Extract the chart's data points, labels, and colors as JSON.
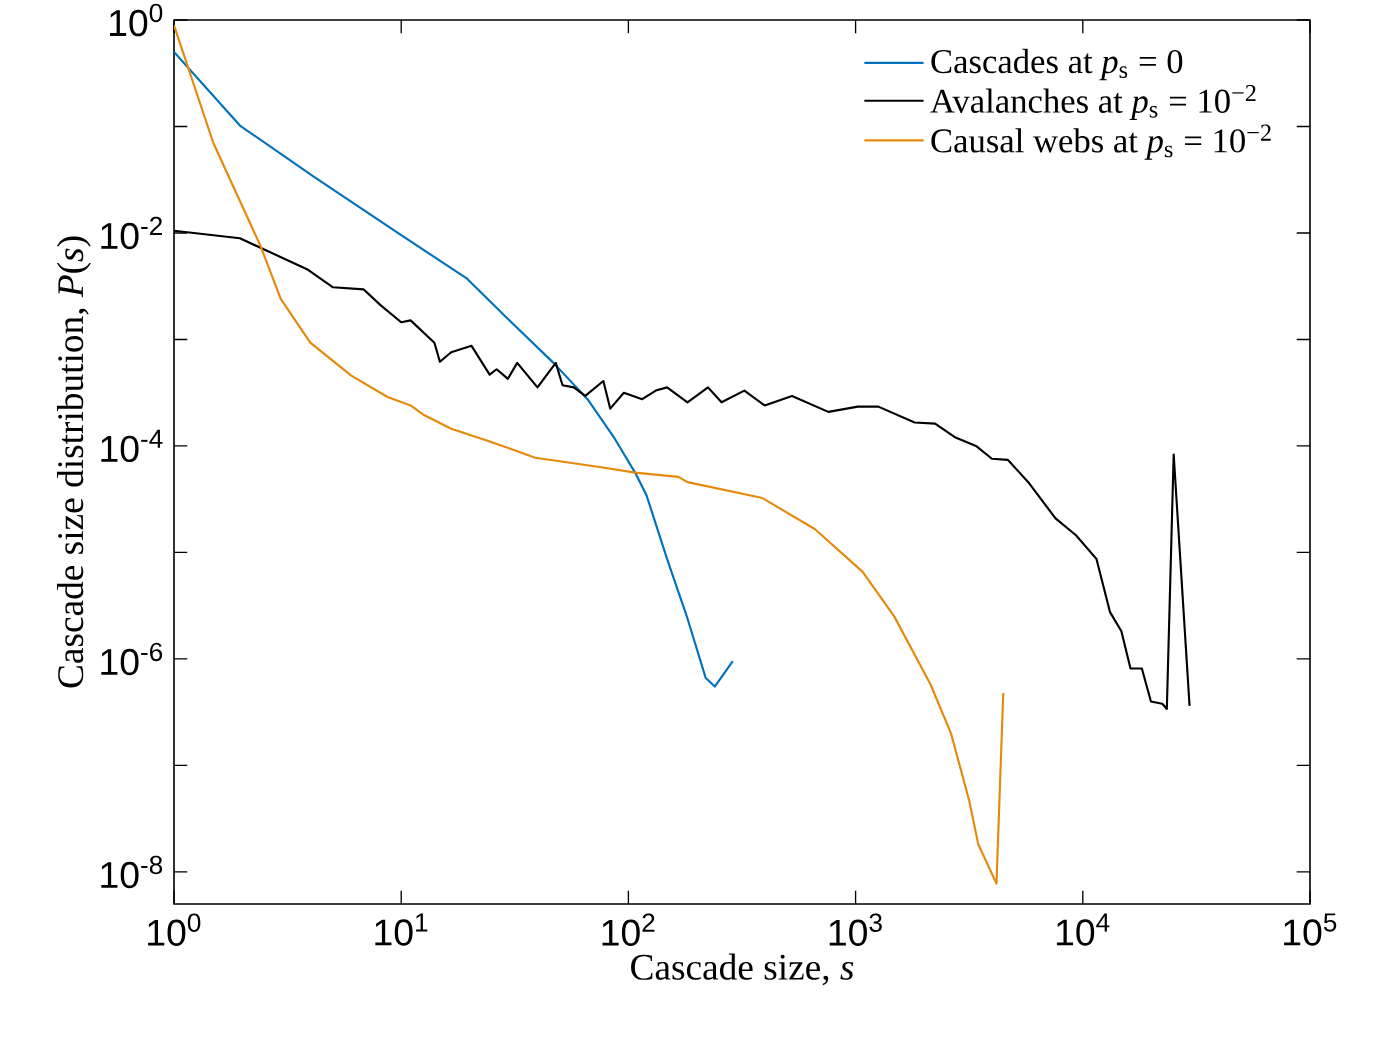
{
  "chart_data": {
    "type": "line",
    "xlabel": "Cascade size, *s*",
    "ylabel": "Cascade size distribution, *P*(*s*)",
    "log": "xy",
    "legend": "top right",
    "grid": false,
    "xlim": [
      1,
      100000
    ],
    "ylim": [
      5e-09,
      1
    ],
    "xticks": [
      {
        "value": 1,
        "label": "10$^{0}$"
      },
      {
        "value": 10,
        "label": "10$^{1}$"
      },
      {
        "value": 100,
        "label": "10$^{2}$"
      },
      {
        "value": 1000,
        "label": "10$^{3}$"
      },
      {
        "value": 10000,
        "label": "10$^{4}$"
      },
      {
        "value": 100000,
        "label": "10$^{5}$"
      }
    ],
    "yticks": [
      {
        "value": 1e-08,
        "label": "10$^{-8}$"
      },
      {
        "value": 1e-07,
        "label": null
      },
      {
        "value": 1e-06,
        "label": "10$^{-6}$"
      },
      {
        "value": 1e-05,
        "label": null
      },
      {
        "value": 0.0001,
        "label": "10$^{-4}$"
      },
      {
        "value": 0.001,
        "label": null
      },
      {
        "value": 0.01,
        "label": "10$^{-2}$"
      },
      {
        "value": 0.1,
        "label": null
      },
      {
        "value": 1,
        "label": "10$^{0}$"
      }
    ],
    "series": [
      {
        "name": "Cascades at *p*$_{s}$ = 0",
        "color": "#0072bd",
        "x": [
          1,
          1.95,
          4.12,
          10,
          19.5,
          31.6,
          46.8,
          66.1,
          87.1,
          107,
          120,
          148,
          182,
          219,
          240,
          288
        ],
        "values": [
          0.5,
          0.102,
          0.0339,
          0.00955,
          0.00372,
          0.00135,
          0.000603,
          0.000275,
          0.000117,
          5.62e-05,
          3.47e-05,
          8.71e-06,
          2.4e-06,
          6.61e-07,
          5.5e-07,
          9.55e-07
        ]
      },
      {
        "name": "Avalanches at *p*$_{s}$ = 10$^{−2}$",
        "color": "#000000",
        "x": [
          1,
          1.95,
          3.85,
          5.01,
          6.84,
          8.13,
          10,
          11,
          14,
          14.8,
          16.6,
          20.4,
          24.5,
          26.3,
          29.5,
          32.4,
          39.8,
          47.9,
          51.3,
          57.5,
          64.6,
          77.6,
          83.2,
          95.5,
          115,
          132,
          148,
          182,
          224,
          257,
          324,
          398,
          525,
          759,
          1023,
          1259,
          1820,
          2239,
          2754,
          3388,
          3981,
          4677,
          5754,
          7586,
          9333,
          11480,
          13180,
          14790,
          16220,
          18200,
          19950,
          22390,
          23440,
          25120,
          29510
        ],
        "values": [
          0.0105,
          0.00891,
          0.00457,
          0.00309,
          0.00295,
          0.00209,
          0.00145,
          0.00151,
          0.000933,
          0.000617,
          0.000759,
          0.000871,
          0.000468,
          0.000525,
          0.000427,
          0.000603,
          0.000355,
          0.000603,
          0.000372,
          0.000355,
          0.000295,
          0.000407,
          0.000224,
          0.000316,
          0.000275,
          0.000331,
          0.000355,
          0.000257,
          0.000355,
          0.000257,
          0.000331,
          0.00024,
          0.000295,
          0.000209,
          0.000234,
          0.000234,
          0.000166,
          0.000162,
          0.00012,
          0.0001,
          7.59e-05,
          7.41e-05,
          4.57e-05,
          2.09e-05,
          1.45e-05,
          8.71e-06,
          2.75e-06,
          1.82e-06,
          8.13e-07,
          8.13e-07,
          3.98e-07,
          3.8e-07,
          3.39e-07,
          8.32e-05,
          3.63e-07
        ]
      },
      {
        "name": "Causal webs at *p*$_{s}$ = 10$^{−2}$",
        "color": "#e5890a",
        "x": [
          1,
          1.49,
          2.4,
          2.95,
          3.98,
          6.03,
          8.71,
          11,
          12.6,
          16.6,
          24,
          38.9,
          75.9,
          107,
          166,
          182,
          389,
          661,
          1072,
          1479,
          2138,
          2630,
          3162,
          3467,
          4169,
          4467
        ],
        "values": [
          0.891,
          0.07,
          0.00759,
          0.0024,
          0.000933,
          0.000457,
          0.000288,
          0.00024,
          0.000195,
          0.000145,
          0.000112,
          7.76e-05,
          6.31e-05,
          5.62e-05,
          5.13e-05,
          4.57e-05,
          3.24e-05,
          1.66e-05,
          6.61e-06,
          2.51e-06,
          5.75e-07,
          2e-07,
          4.68e-08,
          1.82e-08,
          7.76e-09,
          4.79e-07
        ]
      }
    ]
  }
}
